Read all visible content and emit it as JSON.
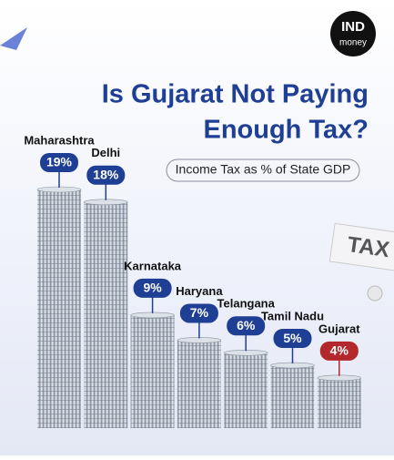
{
  "chart_data": {
    "type": "bar",
    "title": [
      "Is Gujarat Not Paying",
      "Enough Tax?"
    ],
    "subtitle": "Income Tax as % of State GDP",
    "categories": [
      "Maharashtra",
      "Delhi",
      "Karnataka",
      "Haryana",
      "Telangana",
      "Tamil Nadu",
      "Gujarat"
    ],
    "values": [
      19,
      18,
      9,
      7,
      6,
      5,
      4
    ],
    "value_labels": [
      "19%",
      "18%",
      "9%",
      "7%",
      "6%",
      "5%",
      "4%"
    ],
    "colors": [
      "#1f3f95",
      "#1f3f95",
      "#1f3f95",
      "#1f3f95",
      "#1f3f95",
      "#1f3f95",
      "#b3282d"
    ]
  },
  "brand": {
    "name": "IND",
    "sub": "money"
  },
  "tax_card": "TAX"
}
